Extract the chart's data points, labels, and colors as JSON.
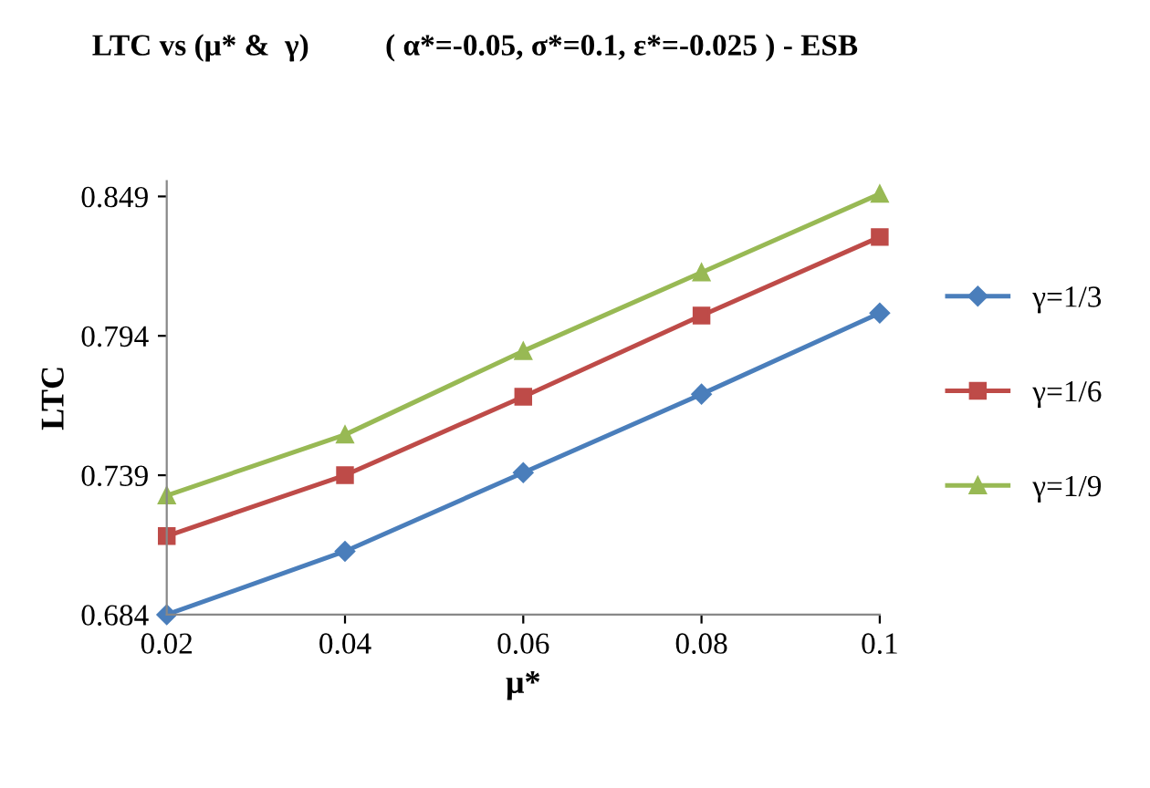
{
  "chart_data": {
    "type": "line",
    "title": "LTC vs (μ* &  γ)          ( α*=-0.05, σ*=0.1, ε*=-0.025 ) - ESB",
    "xlabel": "μ*",
    "ylabel": "LTC",
    "x": [
      0.02,
      0.04,
      0.06,
      0.08,
      0.1
    ],
    "series": [
      {
        "name": "γ=1/3",
        "color": "#4a7ebb",
        "marker": "diamond",
        "values": [
          0.684,
          0.709,
          0.74,
          0.771,
          0.803
        ]
      },
      {
        "name": "γ=1/6",
        "color": "#be4b48",
        "marker": "square",
        "values": [
          0.715,
          0.739,
          0.77,
          0.802,
          0.833
        ]
      },
      {
        "name": "γ=1/9",
        "color": "#98b954",
        "marker": "triangle",
        "values": [
          0.731,
          0.755,
          0.788,
          0.819,
          0.85
        ]
      }
    ],
    "xlim": [
      0.02,
      0.1
    ],
    "xticks": [
      0.02,
      0.04,
      0.06,
      0.08,
      0.1
    ],
    "ylim": [
      0.684,
      0.855
    ],
    "yticks": [
      0.684,
      0.739,
      0.794,
      0.849
    ],
    "grid": false,
    "legend": "right"
  }
}
